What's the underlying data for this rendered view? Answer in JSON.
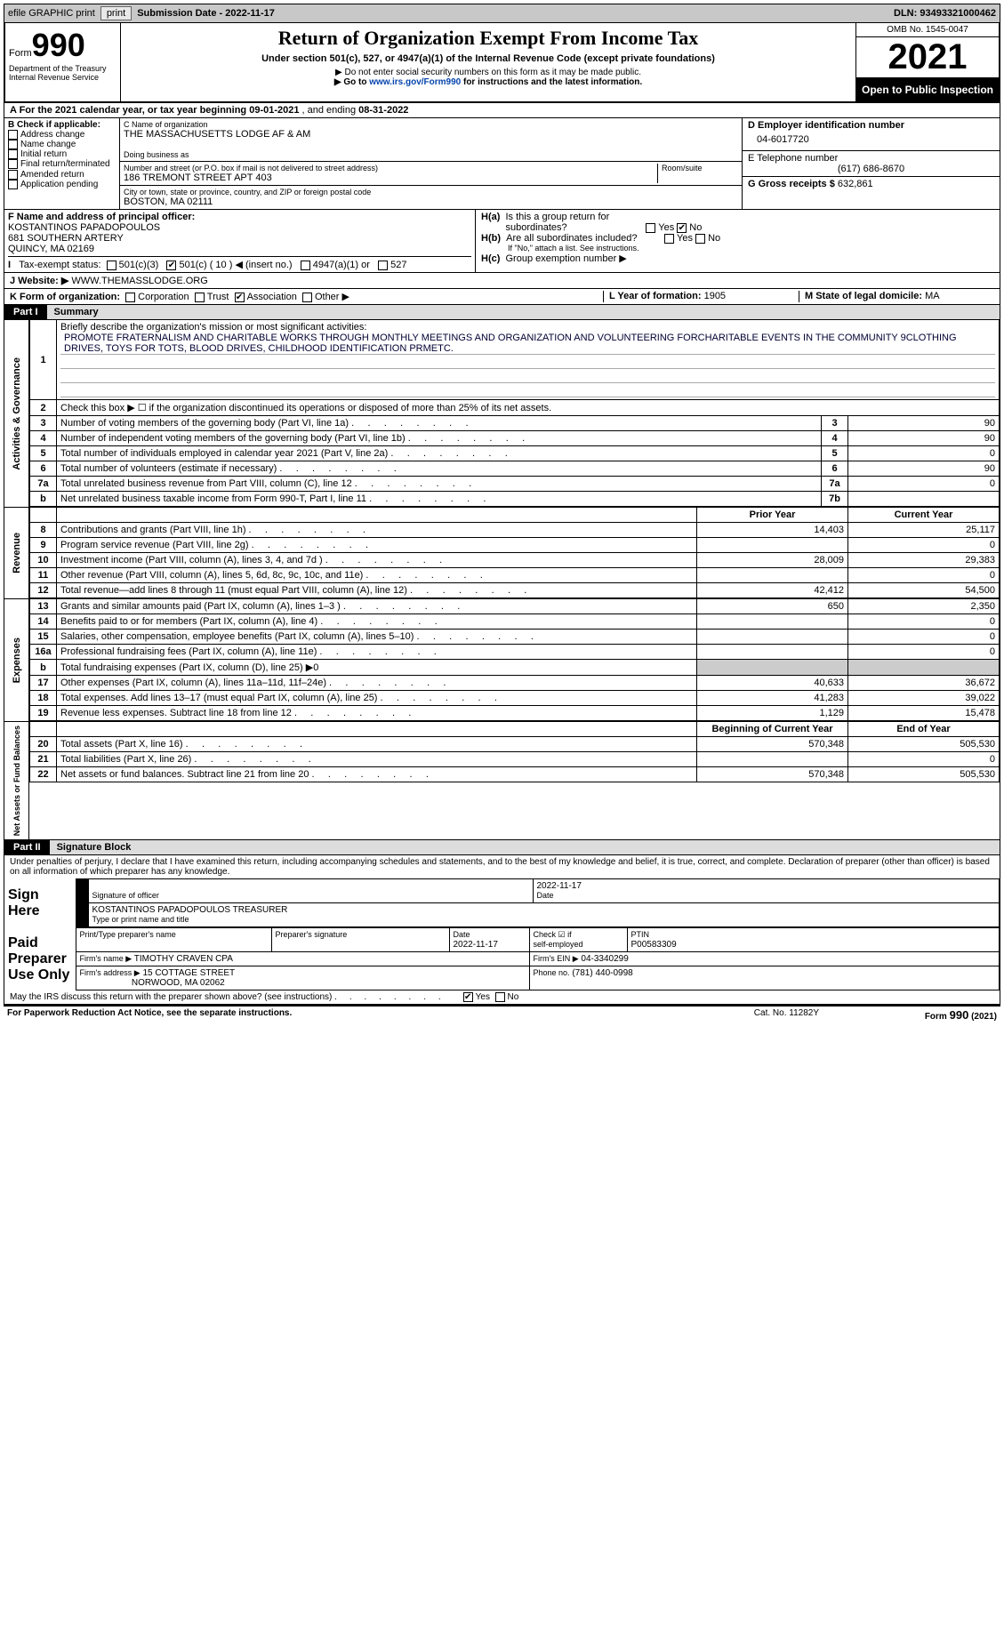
{
  "topbar": {
    "efile": "efile GRAPHIC print",
    "sub_label": "Submission Date - ",
    "sub_date": "2022-11-17",
    "dln_label": "DLN: ",
    "dln": "93493321000462"
  },
  "header": {
    "form_word": "Form",
    "form_num": "990",
    "dept": "Department of the Treasury",
    "irs": "Internal Revenue Service",
    "title": "Return of Organization Exempt From Income Tax",
    "sub1": "Under section 501(c), 527, or 4947(a)(1) of the Internal Revenue Code (except private foundations)",
    "sub2": "▶ Do not enter social security numbers on this form as it may be made public.",
    "sub3_a": "▶ Go to ",
    "sub3_link": "www.irs.gov/Form990",
    "sub3_b": " for instructions and the latest information.",
    "omb": "OMB No. 1545-0047",
    "year": "2021",
    "open": "Open to Public Inspection"
  },
  "taxyear": {
    "pre": "A For the 2021 calendar year, or tax year beginning ",
    "begin": "09-01-2021",
    "mid": "   , and ending ",
    "end": "08-31-2022"
  },
  "B": {
    "hdr": "B Check if applicable:",
    "items": [
      "Address change",
      "Name change",
      "Initial return",
      "Final return/terminated",
      "Amended return",
      "Application pending"
    ]
  },
  "C": {
    "name_lbl": "C Name of organization",
    "name": "THE MASSACHUSETTS LODGE AF & AM",
    "dba_lbl": "Doing business as",
    "dba": "",
    "street_lbl": "Number and street (or P.O. box if mail is not delivered to street address)",
    "street": "186 TREMONT STREET APT 403",
    "suite_lbl": "Room/suite",
    "city_lbl": "City or town, state or province, country, and ZIP or foreign postal code",
    "city": "BOSTON, MA  02111"
  },
  "D": {
    "lbl": "D Employer identification number",
    "val": "04-6017720"
  },
  "E": {
    "lbl": "E Telephone number",
    "val": "(617) 686-8670"
  },
  "G": {
    "lbl": "G Gross receipts $",
    "val": "632,861"
  },
  "F": {
    "lbl": "F  Name and address of principal officer:",
    "name": "KOSTANTINOS PAPADOPOULOS",
    "addr1": "681 SOUTHERN ARTERY",
    "addr2": "QUINCY, MA  02169"
  },
  "H": {
    "a_lbl": "H(a)  Is this a group return for subordinates?",
    "b_lbl": "H(b)  Are all subordinates included?",
    "b_note": "If \"No,\" attach a list. See instructions.",
    "c_lbl": "H(c)  Group exemption number ▶",
    "yes": "Yes",
    "no": "No"
  },
  "I": {
    "lbl": "I   Tax-exempt status:",
    "c3": "501(c)(3)",
    "c": "501(c) (",
    "cnum": "10",
    "cend": ") ◀ (insert no.)",
    "a1": "4947(a)(1) or",
    "s527": "527"
  },
  "J": {
    "lbl": "J   Website: ▶",
    "val": " WWW.THEMASSLODGE.ORG"
  },
  "K": {
    "lbl": "K Form of organization:",
    "corp": "Corporation",
    "trust": "Trust",
    "assoc": "Association",
    "other": "Other ▶"
  },
  "L": {
    "lbl": "L Year of formation:",
    "val": "1905"
  },
  "M": {
    "lbl": "M State of legal domicile:",
    "val": "MA"
  },
  "part1": {
    "bar": "Part I",
    "title": "Summary",
    "l1_lbl": "Briefly describe the organization's mission or most significant activities:",
    "l1_txt": "PROMOTE FRATERNALISM AND CHARITABLE WORKS THROUGH MONTHLY MEETINGS AND ORGANIZATION AND VOLUNTEERING FORCHARITABLE EVENTS IN THE COMMUNITY 9CLOTHING DRIVES, TOYS FOR TOTS, BLOOD DRIVES, CHILDHOOD IDENTIFICATION PRMETC.",
    "l2": "Check this box ▶ ☐ if the organization discontinued its operations or disposed of more than 25% of its net assets.",
    "rows_gov": [
      {
        "n": "3",
        "t": "Number of voting members of the governing body (Part VI, line 1a)",
        "b": "3",
        "v": "90"
      },
      {
        "n": "4",
        "t": "Number of independent voting members of the governing body (Part VI, line 1b)",
        "b": "4",
        "v": "90"
      },
      {
        "n": "5",
        "t": "Total number of individuals employed in calendar year 2021 (Part V, line 2a)",
        "b": "5",
        "v": "0"
      },
      {
        "n": "6",
        "t": "Total number of volunteers (estimate if necessary)",
        "b": "6",
        "v": "90"
      },
      {
        "n": "7a",
        "t": "Total unrelated business revenue from Part VIII, column (C), line 12",
        "b": "7a",
        "v": "0"
      },
      {
        "n": "b",
        "t": "Net unrelated business taxable income from Form 990-T, Part I, line 11",
        "b": "7b",
        "v": ""
      }
    ],
    "prior": "Prior Year",
    "curr": "Current Year",
    "rows_rev": [
      {
        "n": "8",
        "t": "Contributions and grants (Part VIII, line 1h)",
        "p": "14,403",
        "c": "25,117"
      },
      {
        "n": "9",
        "t": "Program service revenue (Part VIII, line 2g)",
        "p": "",
        "c": "0"
      },
      {
        "n": "10",
        "t": "Investment income (Part VIII, column (A), lines 3, 4, and 7d )",
        "p": "28,009",
        "c": "29,383"
      },
      {
        "n": "11",
        "t": "Other revenue (Part VIII, column (A), lines 5, 6d, 8c, 9c, 10c, and 11e)",
        "p": "",
        "c": "0"
      },
      {
        "n": "12",
        "t": "Total revenue—add lines 8 through 11 (must equal Part VIII, column (A), line 12)",
        "p": "42,412",
        "c": "54,500"
      }
    ],
    "rows_exp": [
      {
        "n": "13",
        "t": "Grants and similar amounts paid (Part IX, column (A), lines 1–3 )",
        "p": "650",
        "c": "2,350"
      },
      {
        "n": "14",
        "t": "Benefits paid to or for members (Part IX, column (A), line 4)",
        "p": "",
        "c": "0"
      },
      {
        "n": "15",
        "t": "Salaries, other compensation, employee benefits (Part IX, column (A), lines 5–10)",
        "p": "",
        "c": "0"
      },
      {
        "n": "16a",
        "t": "Professional fundraising fees (Part IX, column (A), line 11e)",
        "p": "",
        "c": "0"
      },
      {
        "n": "b",
        "t": "Total fundraising expenses (Part IX, column (D), line 25) ▶0",
        "p": "grey",
        "c": "grey"
      },
      {
        "n": "17",
        "t": "Other expenses (Part IX, column (A), lines 11a–11d, 11f–24e)",
        "p": "40,633",
        "c": "36,672"
      },
      {
        "n": "18",
        "t": "Total expenses. Add lines 13–17 (must equal Part IX, column (A), line 25)",
        "p": "41,283",
        "c": "39,022"
      },
      {
        "n": "19",
        "t": "Revenue less expenses. Subtract line 18 from line 12",
        "p": "1,129",
        "c": "15,478"
      }
    ],
    "begin": "Beginning of Current Year",
    "end": "End of Year",
    "rows_net": [
      {
        "n": "20",
        "t": "Total assets (Part X, line 16)",
        "p": "570,348",
        "c": "505,530"
      },
      {
        "n": "21",
        "t": "Total liabilities (Part X, line 26)",
        "p": "",
        "c": "0"
      },
      {
        "n": "22",
        "t": "Net assets or fund balances. Subtract line 21 from line 20",
        "p": "570,348",
        "c": "505,530"
      }
    ],
    "side_gov": "Activities & Governance",
    "side_rev": "Revenue",
    "side_exp": "Expenses",
    "side_net": "Net Assets or Fund Balances"
  },
  "part2": {
    "bar": "Part II",
    "title": "Signature Block",
    "decl": "Under penalties of perjury, I declare that I have examined this return, including accompanying schedules and statements, and to the best of my knowledge and belief, it is true, correct, and complete. Declaration of preparer (other than officer) is based on all information of which preparer has any knowledge.",
    "sign_here": "Sign Here",
    "sig_of": "Signature of officer",
    "date": "2022-11-17",
    "name": "KOSTANTINOS PAPADOPOULOS  TREASURER",
    "name_lbl": "Type or print name and title",
    "paid": "Paid Preparer Use Only",
    "prep_name_lbl": "Print/Type preparer's name",
    "prep_sig_lbl": "Preparer's signature",
    "prep_date": "2022-11-17",
    "check_lbl": "Check ☑ if self-employed",
    "ptin_lbl": "PTIN",
    "ptin": "P00583309",
    "firm_name_lbl": "Firm's name     ▶",
    "firm_name": "TIMOTHY CRAVEN CPA",
    "firm_ein_lbl": "Firm's EIN ▶",
    "firm_ein": "04-3340299",
    "firm_addr_lbl": "Firm's address ▶",
    "firm_addr1": "15 COTTAGE STREET",
    "firm_addr2": "NORWOOD, MA  02062",
    "phone_lbl": "Phone no.",
    "phone": "(781) 440-0998",
    "discuss": "May the IRS discuss this return with the preparer shown above? (see instructions)",
    "yes": "Yes",
    "no": "No"
  },
  "footer": {
    "l": "For Paperwork Reduction Act Notice, see the separate instructions.",
    "m": "Cat. No. 11282Y",
    "r": "Form 990 (2021)"
  }
}
